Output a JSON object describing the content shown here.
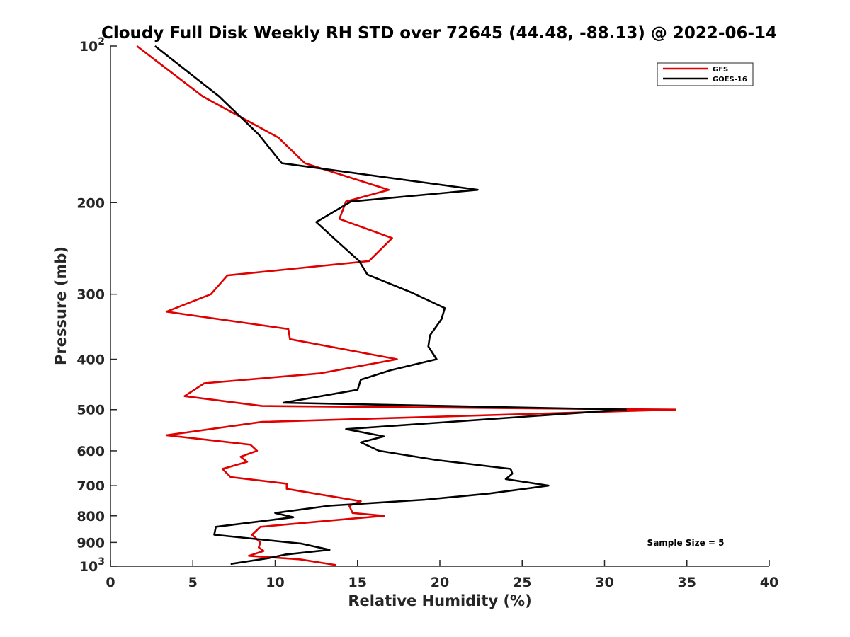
{
  "chart_data": {
    "type": "line",
    "title": "Cloudy Full Disk Weekly RH STD over 72645 (44.48, -88.13) @ 2022-06-14",
    "xlabel": "Relative Humidity (%)",
    "ylabel": "Pressure (mb)",
    "xlim": [
      0,
      40
    ],
    "ylim": [
      100,
      1000
    ],
    "y_scale": "log",
    "y_reversed": true,
    "x_ticks": [
      "0",
      "5",
      "10",
      "15",
      "20",
      "25",
      "30",
      "35",
      "40"
    ],
    "y_ticks": [
      {
        "value": 100,
        "base": "10",
        "exp": "2"
      },
      {
        "value": 200,
        "label": "200"
      },
      {
        "value": 300,
        "label": "300"
      },
      {
        "value": 400,
        "label": "400"
      },
      {
        "value": 500,
        "label": "500"
      },
      {
        "value": 600,
        "label": "600"
      },
      {
        "value": 700,
        "label": "700"
      },
      {
        "value": 800,
        "label": "800"
      },
      {
        "value": 900,
        "label": "900"
      },
      {
        "value": 1000,
        "base": "10",
        "exp": "3"
      }
    ],
    "legend_position": "top-right",
    "grid": false,
    "annotation": "Sample Size = 5",
    "series": [
      {
        "name": "GFS",
        "color": "#e00000",
        "points": [
          [
            1.6,
            100
          ],
          [
            5.6,
            125
          ],
          [
            10.2,
            150
          ],
          [
            11.8,
            168
          ],
          [
            16.9,
            189
          ],
          [
            14.3,
            199
          ],
          [
            13.9,
            215
          ],
          [
            17.1,
            234
          ],
          [
            15.7,
            259
          ],
          [
            7.1,
            276
          ],
          [
            6.1,
            300
          ],
          [
            3.4,
            324
          ],
          [
            10.8,
            350
          ],
          [
            10.9,
            366
          ],
          [
            17.4,
            400
          ],
          [
            12.7,
            426
          ],
          [
            5.7,
            445
          ],
          [
            4.5,
            471
          ],
          [
            9.2,
            492
          ],
          [
            34.3,
            500
          ],
          [
            9.2,
            528
          ],
          [
            3.4,
            560
          ],
          [
            8.5,
            584
          ],
          [
            8.9,
            600
          ],
          [
            7.9,
            616
          ],
          [
            8.3,
            630
          ],
          [
            6.8,
            650
          ],
          [
            7.3,
            674
          ],
          [
            10.7,
            694
          ],
          [
            10.7,
            710
          ],
          [
            15.2,
            750
          ],
          [
            14.5,
            765
          ],
          [
            14.7,
            790
          ],
          [
            16.6,
            800
          ],
          [
            9.1,
            840
          ],
          [
            8.6,
            870
          ],
          [
            9.1,
            900
          ],
          [
            9.0,
            920
          ],
          [
            9.3,
            935
          ],
          [
            8.4,
            955
          ],
          [
            11.5,
            970
          ],
          [
            13.7,
            995
          ]
        ]
      },
      {
        "name": "GOES-16",
        "color": "#000000",
        "points": [
          [
            2.7,
            100
          ],
          [
            6.6,
            125
          ],
          [
            9.0,
            148
          ],
          [
            10.4,
            168
          ],
          [
            22.3,
            189
          ],
          [
            14.6,
            199
          ],
          [
            12.5,
            218
          ],
          [
            14.0,
            241
          ],
          [
            15.1,
            259
          ],
          [
            15.6,
            275
          ],
          [
            18.3,
            298
          ],
          [
            20.3,
            319
          ],
          [
            20.1,
            335
          ],
          [
            19.4,
            360
          ],
          [
            19.3,
            378
          ],
          [
            19.8,
            400
          ],
          [
            17.0,
            420
          ],
          [
            15.2,
            438
          ],
          [
            15.0,
            458
          ],
          [
            10.5,
            485
          ],
          [
            31.3,
            500
          ],
          [
            14.3,
            545
          ],
          [
            16.6,
            563
          ],
          [
            15.2,
            578
          ],
          [
            16.3,
            600
          ],
          [
            19.8,
            625
          ],
          [
            24.3,
            650
          ],
          [
            24.4,
            664
          ],
          [
            24.0,
            680
          ],
          [
            26.6,
            700
          ],
          [
            23.0,
            725
          ],
          [
            19.1,
            745
          ],
          [
            13.3,
            765
          ],
          [
            10.0,
            790
          ],
          [
            11.1,
            805
          ],
          [
            6.4,
            840
          ],
          [
            6.3,
            870
          ],
          [
            11.6,
            905
          ],
          [
            13.3,
            930
          ],
          [
            10.6,
            950
          ],
          [
            9.6,
            965
          ],
          [
            7.3,
            990
          ]
        ]
      }
    ]
  }
}
